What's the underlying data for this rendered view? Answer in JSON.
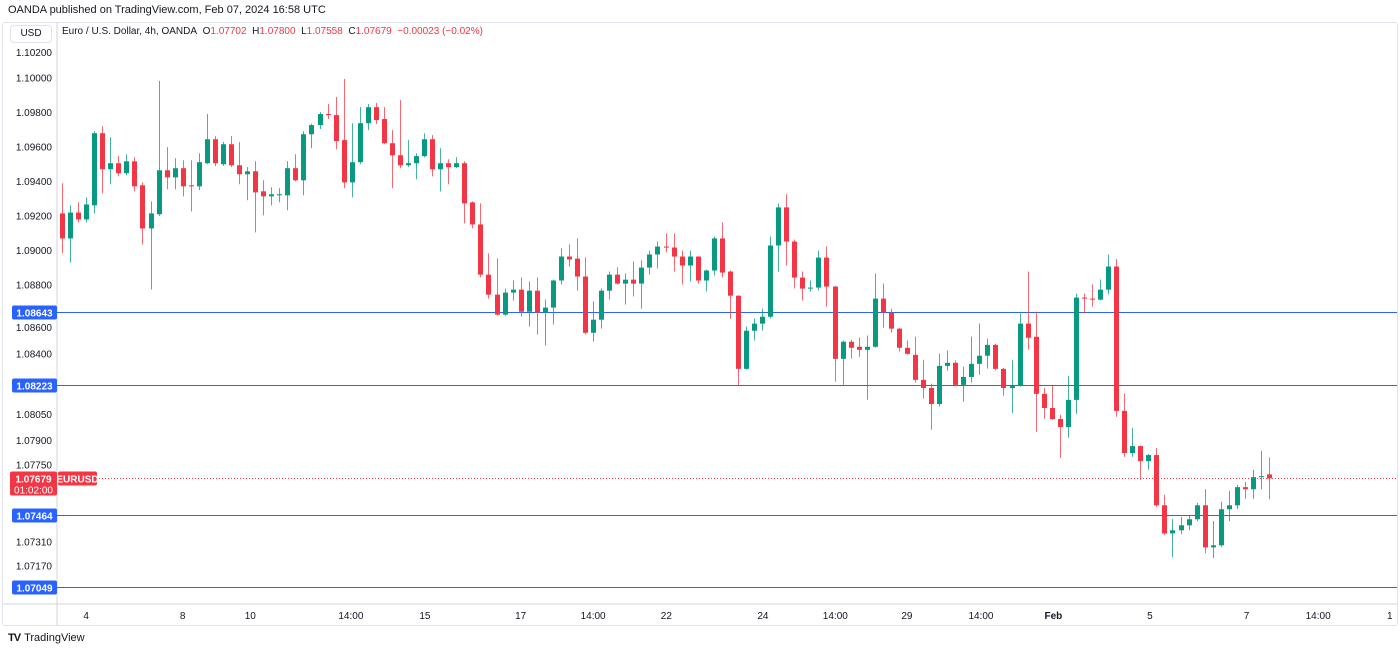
{
  "header": {
    "published": "OANDA published on TradingView.com, Feb 07, 2024 16:58 UTC"
  },
  "currency_button": "USD",
  "legend": {
    "title": "Euro / U.S. Dollar, 4h, OANDA",
    "o_label": "O",
    "o_value": "1.07702",
    "h_label": "H",
    "h_value": "1.07800",
    "l_label": "L",
    "l_value": "1.07558",
    "c_label": "C",
    "c_value": "1.07679",
    "change": "−0.00023 (−0.02%)"
  },
  "footer": {
    "brand": "TradingView"
  },
  "colors": {
    "up": "#089981",
    "down": "#f23645",
    "level": "#2962ff",
    "axis_text": "#131722",
    "grid_border": "#d1d4dc"
  },
  "chart_data": {
    "type": "candlestick",
    "symbol": "EURUSD",
    "interval": "4h",
    "current_price": {
      "value": "1.07679",
      "countdown": "01:02:00",
      "tag": "EURUSD"
    },
    "horizontal_levels": [
      "1.08643",
      "1.08223",
      "1.07464",
      "1.07049"
    ],
    "y_ticks": [
      "1.10200",
      "1.10000",
      "1.09800",
      "1.09600",
      "1.09400",
      "1.09200",
      "1.09000",
      "1.08800",
      "1.08600",
      "1.08400",
      "1.08050",
      "1.07900",
      "1.07750",
      "1.07310",
      "1.07170"
    ],
    "y_range": [
      1.0695,
      1.103
    ],
    "x_ticks": [
      {
        "label": "4",
        "index": 3
      },
      {
        "label": "8",
        "index": 15
      },
      {
        "label": "10",
        "index": 23.4
      },
      {
        "label": "14:00",
        "index": 35.9
      },
      {
        "label": "15",
        "index": 45.1
      },
      {
        "label": "17",
        "index": 57
      },
      {
        "label": "14:00",
        "index": 66
      },
      {
        "label": "22",
        "index": 75.1
      },
      {
        "label": "24",
        "index": 87.1
      },
      {
        "label": "14:00",
        "index": 96.1
      },
      {
        "label": "29",
        "index": 105
      },
      {
        "label": "14:00",
        "index": 114.2
      },
      {
        "label": "Feb",
        "index": 123.2,
        "bold": true
      },
      {
        "label": "5",
        "index": 135.2
      },
      {
        "label": "7",
        "index": 147.2
      },
      {
        "label": "14:00",
        "index": 156.1
      },
      {
        "label": "1",
        "index": 165
      }
    ],
    "ohlc_columns": [
      "open",
      "high",
      "low",
      "close"
    ],
    "candles": [
      [
        1.09215,
        1.0939,
        1.08983,
        1.0907
      ],
      [
        1.0907,
        1.09262,
        1.0893,
        1.0922
      ],
      [
        1.0922,
        1.0928,
        1.09163,
        1.0918
      ],
      [
        1.0918,
        1.09308,
        1.09163,
        1.09267
      ],
      [
        1.09262,
        1.09692,
        1.09215,
        1.0968
      ],
      [
        1.0968,
        1.09721,
        1.09332,
        1.09471
      ],
      [
        1.09471,
        1.09657,
        1.09384,
        1.09506
      ],
      [
        1.09506,
        1.09547,
        1.0943,
        1.09448
      ],
      [
        1.09448,
        1.09558,
        1.09436,
        1.09517
      ],
      [
        1.09517,
        1.09541,
        1.09343,
        1.09372
      ],
      [
        1.09378,
        1.09395,
        1.09035,
        1.09128
      ],
      [
        1.09128,
        1.09285,
        1.08774,
        1.09215
      ],
      [
        1.0921,
        1.09983,
        1.092,
        1.09465
      ],
      [
        1.09465,
        1.09599,
        1.09355,
        1.09424
      ],
      [
        1.09424,
        1.09535,
        1.09355,
        1.09477
      ],
      [
        1.09477,
        1.09523,
        1.09314,
        1.09372
      ],
      [
        1.09378,
        1.09523,
        1.09227,
        1.09372
      ],
      [
        1.09372,
        1.09564,
        1.09349,
        1.09512
      ],
      [
        1.09506,
        1.09791,
        1.095,
        1.09645
      ],
      [
        1.09645,
        1.09663,
        1.09489,
        1.09506
      ],
      [
        1.095,
        1.0963,
        1.0949,
        1.09616
      ],
      [
        1.09616,
        1.09663,
        1.09483,
        1.09494
      ],
      [
        1.09494,
        1.09628,
        1.09384,
        1.09442
      ],
      [
        1.09442,
        1.09483,
        1.09291,
        1.09459
      ],
      [
        1.09459,
        1.09518,
        1.09105,
        1.09337
      ],
      [
        1.09343,
        1.09407,
        1.09204,
        1.09314
      ],
      [
        1.09314,
        1.09367,
        1.09262,
        1.09326
      ],
      [
        1.0932,
        1.09361,
        1.0928,
        1.09326
      ],
      [
        1.0932,
        1.09518,
        1.09233,
        1.09477
      ],
      [
        1.09477,
        1.09558,
        1.094,
        1.09407
      ],
      [
        1.09407,
        1.09692,
        1.0932,
        1.09674
      ],
      [
        1.09674,
        1.09735,
        1.09593,
        1.09727
      ],
      [
        1.09727,
        1.09802,
        1.09704,
        1.09791
      ],
      [
        1.09791,
        1.09849,
        1.09762,
        1.09785
      ],
      [
        1.09785,
        1.0989,
        1.09587,
        1.09634
      ],
      [
        1.0964,
        1.09994,
        1.09361,
        1.09395
      ],
      [
        1.09395,
        1.09738,
        1.09308,
        1.09512
      ],
      [
        1.09512,
        1.09831,
        1.095,
        1.09738
      ],
      [
        1.09738,
        1.09849,
        1.09698,
        1.09831
      ],
      [
        1.09831,
        1.09855,
        1.09733,
        1.09756
      ],
      [
        1.09762,
        1.09831,
        1.09616,
        1.09622
      ],
      [
        1.09622,
        1.09698,
        1.09361,
        1.09552
      ],
      [
        1.09552,
        1.09872,
        1.09477,
        1.09494
      ],
      [
        1.09494,
        1.0964,
        1.09483,
        1.09506
      ],
      [
        1.09506,
        1.09564,
        1.09413,
        1.09547
      ],
      [
        1.09547,
        1.0968,
        1.0954,
        1.09645
      ],
      [
        1.09645,
        1.09669,
        1.0943,
        1.09471
      ],
      [
        1.09471,
        1.09593,
        1.09343,
        1.09506
      ],
      [
        1.09506,
        1.09529,
        1.09384,
        1.09483
      ],
      [
        1.09483,
        1.09541,
        1.09478,
        1.09506
      ],
      [
        1.09506,
        1.09518,
        1.09157,
        1.09273
      ],
      [
        1.09279,
        1.09285,
        1.09128,
        1.09151
      ],
      [
        1.09151,
        1.09273,
        1.08844,
        1.0886
      ],
      [
        1.0886,
        1.08983,
        1.08721,
        1.08744
      ],
      [
        1.08744,
        1.08954,
        1.08623,
        1.08628
      ],
      [
        1.08628,
        1.0878,
        1.08622,
        1.08756
      ],
      [
        1.08756,
        1.08826,
        1.0871,
        1.08773
      ],
      [
        1.08773,
        1.08844,
        1.08617,
        1.08645
      ],
      [
        1.08645,
        1.0882,
        1.08559,
        1.08767
      ],
      [
        1.08767,
        1.08844,
        1.08513,
        1.0864
      ],
      [
        1.0864,
        1.08716,
        1.08449,
        1.08669
      ],
      [
        1.08669,
        1.08832,
        1.08571,
        1.08826
      ],
      [
        1.08826,
        1.09012,
        1.08803,
        1.08965
      ],
      [
        1.08965,
        1.09035,
        1.08907,
        1.08948
      ],
      [
        1.08953,
        1.0907,
        1.08768,
        1.08849
      ],
      [
        1.08849,
        1.0896,
        1.08513,
        1.08523
      ],
      [
        1.08523,
        1.08704,
        1.08472,
        1.08599
      ],
      [
        1.08599,
        1.0878,
        1.08547,
        1.08767
      ],
      [
        1.08767,
        1.08878,
        1.08716,
        1.0886
      ],
      [
        1.0886,
        1.08902,
        1.08803,
        1.08808
      ],
      [
        1.08808,
        1.08867,
        1.08687,
        1.08831
      ],
      [
        1.08831,
        1.08937,
        1.08733,
        1.08808
      ],
      [
        1.08808,
        1.08943,
        1.08663,
        1.08901
      ],
      [
        1.08901,
        1.09,
        1.08861,
        1.08977
      ],
      [
        1.08977,
        1.09052,
        1.08896,
        1.09023
      ],
      [
        1.09023,
        1.09099,
        1.08989,
        1.09017
      ],
      [
        1.09017,
        1.09099,
        1.08878,
        1.08965
      ],
      [
        1.08965,
        1.09,
        1.08803,
        1.08913
      ],
      [
        1.08913,
        1.09,
        1.0882,
        1.08965
      ],
      [
        1.08965,
        1.08966,
        1.08809,
        1.08826
      ],
      [
        1.08826,
        1.0889,
        1.08762,
        1.08884
      ],
      [
        1.08884,
        1.09081,
        1.08855,
        1.0907
      ],
      [
        1.0907,
        1.09163,
        1.08844,
        1.08872
      ],
      [
        1.08878,
        1.08884,
        1.08606,
        1.08738
      ],
      [
        1.08738,
        1.0874,
        1.08216,
        1.08314
      ],
      [
        1.08314,
        1.08559,
        1.08309,
        1.08535
      ],
      [
        1.08535,
        1.08606,
        1.08478,
        1.08576
      ],
      [
        1.08576,
        1.08663,
        1.08536,
        1.08616
      ],
      [
        1.08616,
        1.09081,
        1.08606,
        1.09029
      ],
      [
        1.09029,
        1.09273,
        1.08878,
        1.0925
      ],
      [
        1.0925,
        1.09326,
        1.08913,
        1.09052
      ],
      [
        1.09052,
        1.09064,
        1.0878,
        1.08843
      ],
      [
        1.08843,
        1.08878,
        1.0871,
        1.08779
      ],
      [
        1.08779,
        1.08826,
        1.08762,
        1.08785
      ],
      [
        1.08785,
        1.09,
        1.08768,
        1.08959
      ],
      [
        1.08959,
        1.09023,
        1.08675,
        1.08791
      ],
      [
        1.08791,
        1.08795,
        1.0824,
        1.08372
      ],
      [
        1.08372,
        1.08478,
        1.08222,
        1.08471
      ],
      [
        1.08471,
        1.08483,
        1.08373,
        1.08436
      ],
      [
        1.08442,
        1.08495,
        1.08384,
        1.08424
      ],
      [
        1.08424,
        1.08507,
        1.08135,
        1.08442
      ],
      [
        1.08442,
        1.08867,
        1.08436,
        1.08721
      ],
      [
        1.08721,
        1.08809,
        1.08553,
        1.0864
      ],
      [
        1.0864,
        1.08663,
        1.08524,
        1.08547
      ],
      [
        1.08547,
        1.0855,
        1.08414,
        1.08436
      ],
      [
        1.08436,
        1.08478,
        1.08396,
        1.08401
      ],
      [
        1.08395,
        1.08501,
        1.08234,
        1.0825
      ],
      [
        1.0825,
        1.08367,
        1.08141,
        1.08203
      ],
      [
        1.08203,
        1.08228,
        1.07961,
        1.0811
      ],
      [
        1.0811,
        1.08402,
        1.08094,
        1.08331
      ],
      [
        1.08331,
        1.0842,
        1.08303,
        1.08349
      ],
      [
        1.08349,
        1.08362,
        1.08215,
        1.08221
      ],
      [
        1.08221,
        1.08327,
        1.08123,
        1.08267
      ],
      [
        1.08267,
        1.08501,
        1.08234,
        1.08343
      ],
      [
        1.08343,
        1.08577,
        1.0828,
        1.0839
      ],
      [
        1.0839,
        1.08489,
        1.08315,
        1.08453
      ],
      [
        1.08453,
        1.0846,
        1.08305,
        1.08314
      ],
      [
        1.08314,
        1.0832,
        1.08158,
        1.08203
      ],
      [
        1.08203,
        1.08367,
        1.08059,
        1.08215
      ],
      [
        1.08215,
        1.08635,
        1.0821,
        1.08576
      ],
      [
        1.08576,
        1.08878,
        1.08425,
        1.08494
      ],
      [
        1.085,
        1.08646,
        1.07949,
        1.08169
      ],
      [
        1.08169,
        1.08204,
        1.08025,
        1.08087
      ],
      [
        1.08087,
        1.08216,
        1.08018,
        1.08023
      ],
      [
        1.08023,
        1.08047,
        1.07798,
        1.07977
      ],
      [
        1.07977,
        1.08273,
        1.07914,
        1.08134
      ],
      [
        1.08134,
        1.0875,
        1.08053,
        1.08727
      ],
      [
        1.08727,
        1.0875,
        1.08635,
        1.08721
      ],
      [
        1.08721,
        1.08803,
        1.08675,
        1.08716
      ],
      [
        1.08715,
        1.08832,
        1.0871,
        1.08773
      ],
      [
        1.08773,
        1.08977,
        1.08745,
        1.08907
      ],
      [
        1.08907,
        1.0895,
        1.08036,
        1.0807
      ],
      [
        1.0807,
        1.0817,
        1.07804,
        1.07826
      ],
      [
        1.07826,
        1.07972,
        1.07804,
        1.07866
      ],
      [
        1.07866,
        1.0787,
        1.0767,
        1.07779
      ],
      [
        1.07779,
        1.0782,
        1.07728,
        1.07814
      ],
      [
        1.07814,
        1.07856,
        1.07513,
        1.07523
      ],
      [
        1.07523,
        1.07583,
        1.0735,
        1.0736
      ],
      [
        1.0736,
        1.07443,
        1.07222,
        1.07378
      ],
      [
        1.07378,
        1.07455,
        1.07356,
        1.07407
      ],
      [
        1.07407,
        1.07466,
        1.07379,
        1.07442
      ],
      [
        1.07442,
        1.07536,
        1.07432,
        1.07523
      ],
      [
        1.07523,
        1.07617,
        1.07246,
        1.07279
      ],
      [
        1.07279,
        1.07432,
        1.07217,
        1.07291
      ],
      [
        1.07291,
        1.07542,
        1.07281,
        1.075
      ],
      [
        1.075,
        1.07606,
        1.07432,
        1.07523
      ],
      [
        1.07523,
        1.07641,
        1.07501,
        1.07628
      ],
      [
        1.07628,
        1.07659,
        1.0756,
        1.07616
      ],
      [
        1.07616,
        1.07728,
        1.0756,
        1.07686
      ],
      [
        1.07686,
        1.07838,
        1.07617,
        1.07692
      ],
      [
        1.07702,
        1.078,
        1.07558,
        1.07679
      ]
    ]
  }
}
